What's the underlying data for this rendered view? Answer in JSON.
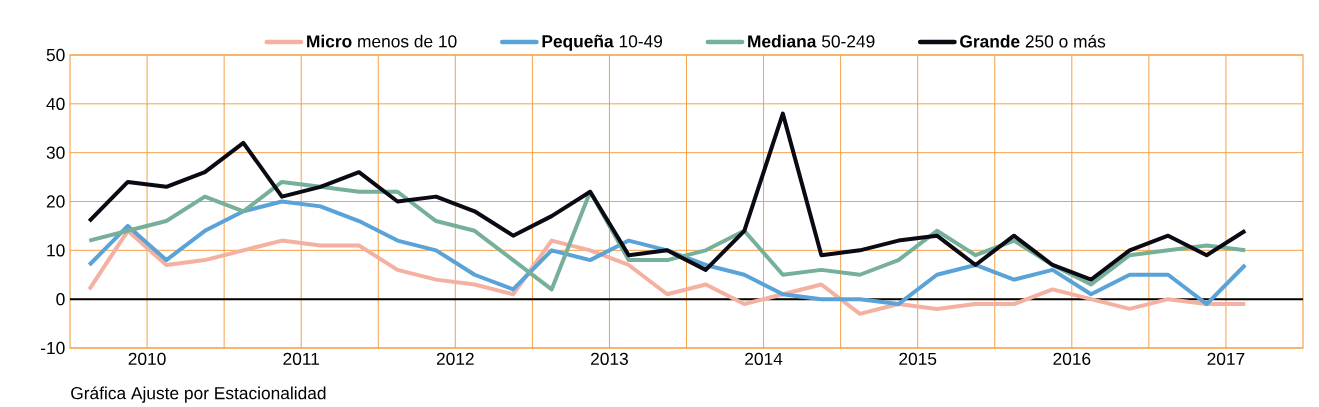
{
  "chart_data": {
    "type": "line",
    "x": [
      2010.125,
      2010.375,
      2010.625,
      2010.875,
      2011.125,
      2011.375,
      2011.625,
      2011.875,
      2012.125,
      2012.375,
      2012.625,
      2012.875,
      2013.125,
      2013.375,
      2013.625,
      2013.875,
      2014.125,
      2014.375,
      2014.625,
      2014.875,
      2015.125,
      2015.375,
      2015.625,
      2015.875,
      2016.125,
      2016.375,
      2016.625,
      2016.875,
      2017.125,
      2017.375,
      2017.625
    ],
    "series": [
      {
        "name": "**Micro** menos de 10",
        "color": "#f4b0a0",
        "values": [
          2,
          14,
          7,
          8,
          10,
          12,
          11,
          11,
          6,
          4,
          3,
          1,
          12,
          10,
          7,
          1,
          3,
          -1,
          1,
          3,
          -3,
          -1,
          -2,
          -1,
          -1,
          2,
          0,
          -2,
          0,
          -1,
          -1
        ]
      },
      {
        "name": "**Pequeña** 10-49",
        "color": "#5aa3d8",
        "values": [
          7,
          15,
          8,
          14,
          18,
          20,
          19,
          16,
          12,
          10,
          5,
          2,
          10,
          8,
          12,
          10,
          7,
          5,
          1,
          0,
          0,
          -1,
          5,
          7,
          4,
          6,
          1,
          5,
          5,
          -1,
          7
        ]
      },
      {
        "name": "**Mediana** 50-249",
        "color": "#76b09a",
        "values": [
          12,
          14,
          16,
          21,
          18,
          24,
          23,
          22,
          22,
          16,
          14,
          8,
          2,
          22,
          8,
          8,
          10,
          14,
          5,
          6,
          5,
          8,
          14,
          9,
          12,
          7,
          3,
          9,
          10,
          11,
          10
        ]
      },
      {
        "name": "**Grande** 250 o más",
        "color": "#0a0a14",
        "values": [
          16,
          24,
          23,
          26,
          32,
          21,
          23,
          26,
          20,
          21,
          18,
          13,
          17,
          22,
          9,
          10,
          6,
          14,
          38,
          9,
          10,
          12,
          13,
          7,
          13,
          7,
          4,
          10,
          13,
          9,
          14
        ]
      }
    ],
    "xlim": [
      2010,
      2018
    ],
    "xticks": [
      {
        "value": 2010.5,
        "label": "2010"
      },
      {
        "value": 2011,
        "label": null
      },
      {
        "value": 2011.5,
        "label": "2011"
      },
      {
        "value": 2012,
        "label": null
      },
      {
        "value": 2012.5,
        "label": "2012"
      },
      {
        "value": 2013,
        "label": null
      },
      {
        "value": 2013.5,
        "label": "2013"
      },
      {
        "value": 2014,
        "label": null
      },
      {
        "value": 2014.5,
        "label": "2014"
      },
      {
        "value": 2015,
        "label": null
      },
      {
        "value": 2015.5,
        "label": "2015"
      },
      {
        "value": 2016,
        "label": null
      },
      {
        "value": 2016.5,
        "label": "2016"
      },
      {
        "value": 2017,
        "label": null
      },
      {
        "value": 2017.5,
        "label": "2017"
      }
    ],
    "ylim": [
      -10,
      50
    ],
    "yticks": [
      -10,
      0,
      10,
      20,
      30,
      40,
      50
    ],
    "ref_lines": [
      {
        "axis": "y",
        "value": 0,
        "color": "#000000"
      }
    ],
    "grid": true,
    "legend": "top",
    "line_style": "solid",
    "annotations": [
      "Gráfica Ajuste por Estacionalidad"
    ]
  }
}
